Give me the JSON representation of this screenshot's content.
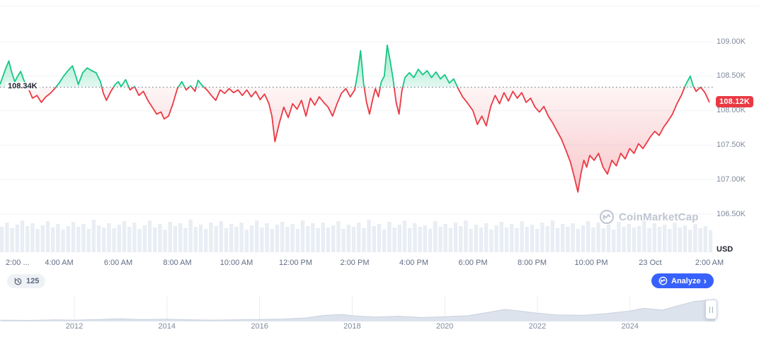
{
  "watermark": {
    "text": "CoinMarketCap"
  },
  "toolbar": {
    "history_count": "125",
    "analyze_label": "Analyze",
    "analyze_chevron": "›"
  },
  "chart_data": {
    "type": "line",
    "baseline": {
      "label": "108.34K",
      "value": 108.34
    },
    "last_price": {
      "label": "108.12K",
      "value": 108.12
    },
    "y_axis": {
      "unit_label": "USD",
      "range": [
        106.4,
        109.1
      ],
      "ticks": [
        {
          "label": "109.00K",
          "value": 109.0
        },
        {
          "label": "108.50K",
          "value": 108.5
        },
        {
          "label": "108.00K",
          "value": 108.0
        },
        {
          "label": "107.50K",
          "value": 107.5
        },
        {
          "label": "107.00K",
          "value": 107.0
        },
        {
          "label": "106.50K",
          "value": 106.5
        }
      ]
    },
    "x_axis": {
      "ticks": [
        {
          "label": "2:00 ...",
          "t": 0
        },
        {
          "label": "4:00 AM",
          "t": 2
        },
        {
          "label": "6:00 AM",
          "t": 4
        },
        {
          "label": "8:00 AM",
          "t": 6
        },
        {
          "label": "10:00 AM",
          "t": 8
        },
        {
          "label": "12:00 PM",
          "t": 10
        },
        {
          "label": "2:00 PM",
          "t": 12
        },
        {
          "label": "4:00 PM",
          "t": 14
        },
        {
          "label": "6:00 PM",
          "t": 16
        },
        {
          "label": "8:00 PM",
          "t": 18
        },
        {
          "label": "10:00 PM",
          "t": 20
        },
        {
          "label": "23 Oct",
          "t": 22
        },
        {
          "label": "2:00 AM",
          "t": 24
        }
      ]
    },
    "series": [
      {
        "name": "price-thousand-usd",
        "points": [
          [
            0.0,
            108.38
          ],
          [
            0.1,
            108.5
          ],
          [
            0.2,
            108.62
          ],
          [
            0.3,
            108.72
          ],
          [
            0.4,
            108.55
          ],
          [
            0.5,
            108.42
          ],
          [
            0.6,
            108.5
          ],
          [
            0.7,
            108.57
          ],
          [
            0.8,
            108.45
          ],
          [
            0.9,
            108.35
          ],
          [
            1.0,
            108.28
          ],
          [
            1.1,
            108.18
          ],
          [
            1.25,
            108.22
          ],
          [
            1.4,
            108.12
          ],
          [
            1.55,
            108.2
          ],
          [
            1.7,
            108.25
          ],
          [
            1.85,
            108.32
          ],
          [
            2.0,
            108.4
          ],
          [
            2.15,
            108.5
          ],
          [
            2.3,
            108.58
          ],
          [
            2.45,
            108.65
          ],
          [
            2.55,
            108.52
          ],
          [
            2.65,
            108.38
          ],
          [
            2.8,
            108.55
          ],
          [
            2.95,
            108.62
          ],
          [
            3.1,
            108.58
          ],
          [
            3.25,
            108.55
          ],
          [
            3.4,
            108.42
          ],
          [
            3.5,
            108.25
          ],
          [
            3.6,
            108.15
          ],
          [
            3.75,
            108.28
          ],
          [
            3.9,
            108.38
          ],
          [
            4.0,
            108.42
          ],
          [
            4.1,
            108.35
          ],
          [
            4.25,
            108.45
          ],
          [
            4.4,
            108.3
          ],
          [
            4.55,
            108.35
          ],
          [
            4.7,
            108.22
          ],
          [
            4.85,
            108.28
          ],
          [
            5.0,
            108.15
          ],
          [
            5.15,
            108.05
          ],
          [
            5.3,
            107.95
          ],
          [
            5.45,
            107.98
          ],
          [
            5.55,
            107.88
          ],
          [
            5.7,
            107.92
          ],
          [
            5.85,
            108.1
          ],
          [
            6.0,
            108.32
          ],
          [
            6.15,
            108.42
          ],
          [
            6.3,
            108.3
          ],
          [
            6.45,
            108.36
          ],
          [
            6.6,
            108.28
          ],
          [
            6.7,
            108.44
          ],
          [
            6.85,
            108.36
          ],
          [
            7.0,
            108.3
          ],
          [
            7.15,
            108.22
          ],
          [
            7.3,
            108.15
          ],
          [
            7.45,
            108.3
          ],
          [
            7.6,
            108.25
          ],
          [
            7.75,
            108.32
          ],
          [
            7.9,
            108.26
          ],
          [
            8.05,
            108.3
          ],
          [
            8.2,
            108.22
          ],
          [
            8.35,
            108.3
          ],
          [
            8.5,
            108.2
          ],
          [
            8.65,
            108.28
          ],
          [
            8.8,
            108.16
          ],
          [
            8.95,
            108.24
          ],
          [
            9.1,
            108.1
          ],
          [
            9.2,
            107.92
          ],
          [
            9.3,
            107.55
          ],
          [
            9.45,
            107.82
          ],
          [
            9.6,
            108.05
          ],
          [
            9.75,
            107.9
          ],
          [
            9.9,
            108.1
          ],
          [
            10.05,
            108.02
          ],
          [
            10.2,
            108.15
          ],
          [
            10.35,
            107.92
          ],
          [
            10.5,
            108.18
          ],
          [
            10.65,
            108.08
          ],
          [
            10.8,
            108.2
          ],
          [
            10.95,
            108.12
          ],
          [
            11.1,
            108.05
          ],
          [
            11.25,
            107.92
          ],
          [
            11.4,
            108.1
          ],
          [
            11.55,
            108.25
          ],
          [
            11.7,
            108.32
          ],
          [
            11.85,
            108.2
          ],
          [
            12.0,
            108.3
          ],
          [
            12.1,
            108.55
          ],
          [
            12.2,
            108.87
          ],
          [
            12.3,
            108.4
          ],
          [
            12.4,
            108.12
          ],
          [
            12.5,
            107.95
          ],
          [
            12.6,
            108.15
          ],
          [
            12.7,
            108.32
          ],
          [
            12.8,
            108.2
          ],
          [
            12.9,
            108.42
          ],
          [
            13.0,
            108.5
          ],
          [
            13.1,
            108.95
          ],
          [
            13.2,
            108.72
          ],
          [
            13.3,
            108.45
          ],
          [
            13.4,
            108.12
          ],
          [
            13.5,
            107.95
          ],
          [
            13.6,
            108.3
          ],
          [
            13.7,
            108.48
          ],
          [
            13.85,
            108.55
          ],
          [
            14.0,
            108.48
          ],
          [
            14.15,
            108.6
          ],
          [
            14.3,
            108.52
          ],
          [
            14.45,
            108.58
          ],
          [
            14.6,
            108.48
          ],
          [
            14.75,
            108.56
          ],
          [
            14.9,
            108.46
          ],
          [
            15.05,
            108.52
          ],
          [
            15.2,
            108.4
          ],
          [
            15.35,
            108.46
          ],
          [
            15.5,
            108.32
          ],
          [
            15.65,
            108.2
          ],
          [
            15.8,
            108.12
          ],
          [
            16.0,
            108.0
          ],
          [
            16.15,
            107.8
          ],
          [
            16.3,
            107.92
          ],
          [
            16.45,
            107.78
          ],
          [
            16.6,
            108.06
          ],
          [
            16.75,
            108.22
          ],
          [
            16.9,
            108.1
          ],
          [
            17.05,
            108.26
          ],
          [
            17.2,
            108.14
          ],
          [
            17.35,
            108.28
          ],
          [
            17.5,
            108.18
          ],
          [
            17.65,
            108.26
          ],
          [
            17.8,
            108.12
          ],
          [
            17.95,
            108.18
          ],
          [
            18.1,
            108.05
          ],
          [
            18.25,
            107.98
          ],
          [
            18.4,
            108.06
          ],
          [
            18.55,
            107.92
          ],
          [
            18.7,
            107.82
          ],
          [
            18.85,
            107.7
          ],
          [
            19.0,
            107.58
          ],
          [
            19.15,
            107.42
          ],
          [
            19.3,
            107.25
          ],
          [
            19.45,
            107.0
          ],
          [
            19.55,
            106.82
          ],
          [
            19.65,
            107.08
          ],
          [
            19.75,
            107.28
          ],
          [
            19.85,
            107.18
          ],
          [
            19.95,
            107.35
          ],
          [
            20.1,
            107.28
          ],
          [
            20.25,
            107.38
          ],
          [
            20.4,
            107.18
          ],
          [
            20.55,
            107.08
          ],
          [
            20.7,
            107.28
          ],
          [
            20.85,
            107.2
          ],
          [
            21.0,
            107.38
          ],
          [
            21.15,
            107.3
          ],
          [
            21.3,
            107.45
          ],
          [
            21.45,
            107.38
          ],
          [
            21.6,
            107.52
          ],
          [
            21.75,
            107.45
          ],
          [
            21.9,
            107.55
          ],
          [
            22.0,
            107.62
          ],
          [
            22.15,
            107.7
          ],
          [
            22.3,
            107.64
          ],
          [
            22.45,
            107.76
          ],
          [
            22.6,
            107.85
          ],
          [
            22.75,
            107.95
          ],
          [
            22.9,
            108.1
          ],
          [
            23.05,
            108.22
          ],
          [
            23.2,
            108.38
          ],
          [
            23.35,
            108.5
          ],
          [
            23.45,
            108.36
          ],
          [
            23.55,
            108.28
          ],
          [
            23.7,
            108.34
          ],
          [
            23.85,
            108.26
          ],
          [
            24.0,
            108.12
          ]
        ]
      }
    ],
    "volume_bar_heights": [
      36,
      42,
      34,
      39,
      45,
      37,
      41,
      33,
      38,
      44,
      35,
      40,
      32,
      37,
      43,
      36,
      40,
      33,
      46,
      38,
      35,
      41,
      34,
      39,
      44,
      36,
      42,
      33,
      38,
      45,
      35,
      40,
      32,
      43,
      37,
      41,
      34,
      46,
      36,
      39,
      33,
      42,
      37,
      44,
      34,
      40,
      36,
      42,
      32,
      38,
      45,
      35,
      41,
      33,
      39,
      43,
      36,
      40,
      33,
      45,
      37,
      41,
      34,
      42,
      35,
      38,
      44,
      33,
      39,
      36,
      42,
      34,
      46,
      37,
      40,
      32,
      43,
      35,
      39,
      45,
      34,
      41,
      36,
      38,
      33,
      44,
      36,
      40,
      34,
      42,
      37,
      45,
      33,
      39,
      35,
      41,
      32,
      38,
      43,
      35,
      40,
      34,
      44,
      36,
      39,
      33,
      42,
      37,
      45,
      34,
      40,
      36,
      41,
      33,
      38,
      44,
      35,
      42,
      34,
      39,
      32,
      43,
      36,
      40,
      35,
      37,
      44,
      34,
      41,
      36,
      39,
      33,
      42,
      35,
      38,
      32,
      40,
      34,
      37,
      31
    ],
    "colors": {
      "up": "#16c784",
      "down": "#ea3943",
      "baseline_line": "#616e85",
      "last_price_bg": "#ea3943",
      "volume": "#e9edf4",
      "gridline": "#f0f2f7",
      "analyze_blue": "#3861fb",
      "minimap_fill": "#dde3ed",
      "minimap_stroke": "#c9d1de"
    }
  },
  "minimap": {
    "year_labels": [
      {
        "label": "2012",
        "year": 2012
      },
      {
        "label": "2014",
        "year": 2014
      },
      {
        "label": "2016",
        "year": 2016
      },
      {
        "label": "2018",
        "year": 2018
      },
      {
        "label": "2020",
        "year": 2020
      },
      {
        "label": "2022",
        "year": 2022
      },
      {
        "label": "2024",
        "year": 2024
      }
    ],
    "points": [
      [
        2010.4,
        0.06
      ],
      [
        2011.0,
        0.05
      ],
      [
        2011.6,
        0.07
      ],
      [
        2012.0,
        0.06
      ],
      [
        2012.5,
        0.09
      ],
      [
        2013.0,
        0.12
      ],
      [
        2013.4,
        0.09
      ],
      [
        2014.0,
        0.1
      ],
      [
        2014.6,
        0.07
      ],
      [
        2015.0,
        0.06
      ],
      [
        2015.6,
        0.08
      ],
      [
        2016.0,
        0.09
      ],
      [
        2016.5,
        0.11
      ],
      [
        2017.0,
        0.16
      ],
      [
        2017.4,
        0.28
      ],
      [
        2017.8,
        0.32
      ],
      [
        2018.0,
        0.26
      ],
      [
        2018.5,
        0.2
      ],
      [
        2019.0,
        0.24
      ],
      [
        2019.5,
        0.18
      ],
      [
        2020.0,
        0.22
      ],
      [
        2020.5,
        0.26
      ],
      [
        2021.0,
        0.44
      ],
      [
        2021.3,
        0.55
      ],
      [
        2021.6,
        0.48
      ],
      [
        2022.0,
        0.38
      ],
      [
        2022.4,
        0.3
      ],
      [
        2023.0,
        0.28
      ],
      [
        2023.5,
        0.36
      ],
      [
        2024.0,
        0.48
      ],
      [
        2024.3,
        0.6
      ],
      [
        2024.7,
        0.52
      ],
      [
        2025.0,
        0.7
      ],
      [
        2025.4,
        0.92
      ],
      [
        2025.85,
        1.0
      ]
    ]
  }
}
